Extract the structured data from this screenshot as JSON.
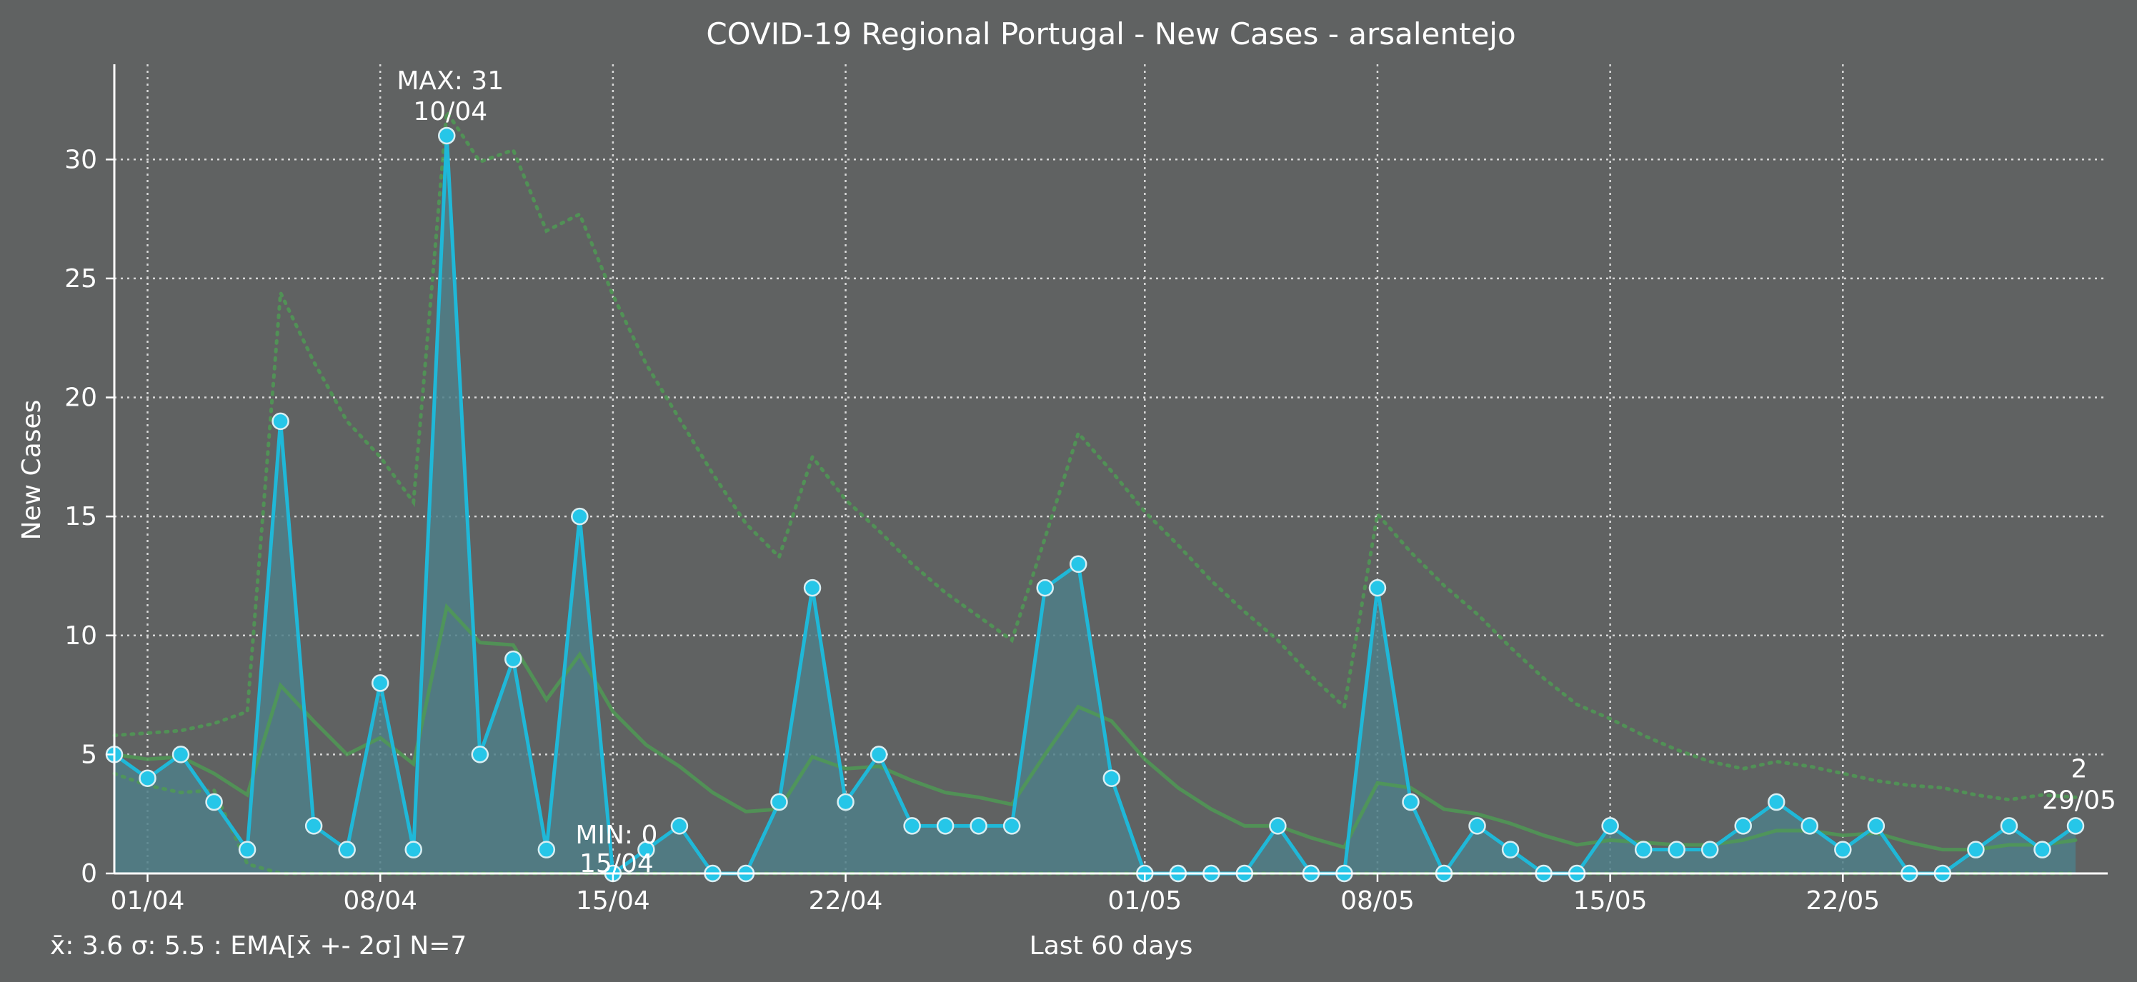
{
  "chart_data": {
    "type": "line",
    "title": "COVID-19 Regional Portugal - New Cases - arsalentejo",
    "xlabel": "Last 60 days",
    "ylabel": "New Cases",
    "ylim": [
      0,
      34
    ],
    "y_ticks": [
      0,
      5,
      10,
      15,
      20,
      25,
      30
    ],
    "x_ticks": [
      "01/04",
      "08/04",
      "15/04",
      "22/04",
      "01/05",
      "08/05",
      "15/05",
      "22/05"
    ],
    "grid": true,
    "dates": [
      "31/03",
      "01/04",
      "02/04",
      "03/04",
      "04/04",
      "05/04",
      "06/04",
      "07/04",
      "08/04",
      "09/04",
      "10/04",
      "11/04",
      "12/04",
      "13/04",
      "14/04",
      "15/04",
      "16/04",
      "17/04",
      "18/04",
      "19/04",
      "20/04",
      "21/04",
      "22/04",
      "23/04",
      "24/04",
      "25/04",
      "26/04",
      "27/04",
      "28/04",
      "29/04",
      "30/04",
      "01/05",
      "02/05",
      "03/05",
      "04/05",
      "05/05",
      "06/05",
      "07/05",
      "08/05",
      "09/05",
      "10/05",
      "11/05",
      "12/05",
      "13/05",
      "14/05",
      "15/05",
      "16/05",
      "17/05",
      "18/05",
      "19/05",
      "20/05",
      "21/05",
      "22/05",
      "23/05",
      "24/05",
      "25/05",
      "26/05",
      "27/05",
      "28/05",
      "29/05"
    ],
    "series": [
      {
        "values": [
          5,
          4,
          5,
          3,
          1,
          19,
          2,
          1,
          8,
          1,
          31,
          5,
          9,
          1,
          15,
          0,
          1,
          2,
          0,
          0,
          3,
          12,
          3,
          5,
          2,
          2,
          2,
          2,
          12,
          13,
          4,
          0,
          0,
          0,
          0,
          2,
          0,
          0,
          12,
          3,
          0,
          2,
          1,
          0,
          0,
          2,
          1,
          1,
          1,
          2,
          3,
          2,
          1,
          2,
          0,
          0,
          1,
          2,
          1,
          2
        ],
        "color": "#1fb8d8"
      },
      {
        "values": [
          5,
          4.8,
          4.9,
          4.2,
          3.3,
          7.9,
          6.4,
          5.0,
          5.7,
          4.6,
          11.2,
          9.7,
          9.6,
          7.3,
          9.2,
          6.8,
          5.4,
          4.5,
          3.4,
          2.6,
          2.7,
          4.9,
          4.4,
          4.5,
          3.9,
          3.4,
          3.2,
          2.9,
          5.0,
          7.0,
          6.4,
          4.8,
          3.6,
          2.7,
          2.0,
          2.0,
          1.5,
          1.1,
          3.8,
          3.6,
          2.7,
          2.5,
          2.1,
          1.6,
          1.2,
          1.4,
          1.3,
          1.2,
          1.2,
          1.4,
          1.8,
          1.8,
          1.6,
          1.7,
          1.3,
          1.0,
          1.0,
          1.2,
          1.2,
          1.4
        ],
        "color": "#4f9a55"
      },
      {
        "values": [
          5.8,
          5.9,
          6.0,
          6.3,
          6.8,
          24.4,
          21.5,
          19.0,
          17.5,
          15.6,
          32.0,
          29.9,
          30.4,
          27.0,
          27.7,
          24.3,
          21.4,
          19.1,
          16.8,
          14.7,
          13.3,
          17.5,
          15.7,
          14.4,
          13.0,
          11.8,
          10.8,
          9.8,
          14.1,
          18.5,
          16.9,
          15.2,
          13.8,
          12.3,
          11.0,
          9.8,
          8.3,
          7.0,
          15.1,
          13.5,
          12.1,
          10.9,
          9.5,
          8.2,
          7.1,
          6.5,
          5.8,
          5.2,
          4.7,
          4.4,
          4.7,
          4.5,
          4.2,
          3.9,
          3.7,
          3.6,
          3.3,
          3.1,
          3.3,
          3.2
        ],
        "color": "#4f9a55"
      },
      {
        "values": [
          4.2,
          3.7,
          3.4,
          3.5,
          0.4,
          0,
          0,
          0,
          0,
          0,
          0,
          0,
          0,
          0,
          0,
          0,
          0,
          0,
          0,
          0,
          0,
          0,
          0,
          0,
          0,
          0,
          0,
          0,
          0,
          0,
          0,
          0,
          0,
          0,
          0,
          0,
          0,
          0,
          0,
          0,
          0,
          0,
          0,
          0,
          0,
          0,
          0,
          0,
          0,
          0,
          0,
          0,
          0,
          0,
          0,
          0,
          0,
          0,
          0,
          0
        ],
        "color": "#4f9a55"
      }
    ],
    "annotations": {
      "max_label": "MAX: 31",
      "max_date": "10/04",
      "min_label": "MIN: 0",
      "min_date": "15/04",
      "last_value": "2",
      "last_date": "29/05"
    },
    "stats_text": "x̄: 3.6 σ: 5.5 : EMA[x̄ +- 2σ] N=7",
    "colors": {
      "background": "#606262",
      "main": "#1fb8d8",
      "fill": "#4f7f88",
      "ema": "#4f9a55",
      "stats": "#7cfc00",
      "text": "#ffffff",
      "grid": "#d8d8d8"
    }
  }
}
